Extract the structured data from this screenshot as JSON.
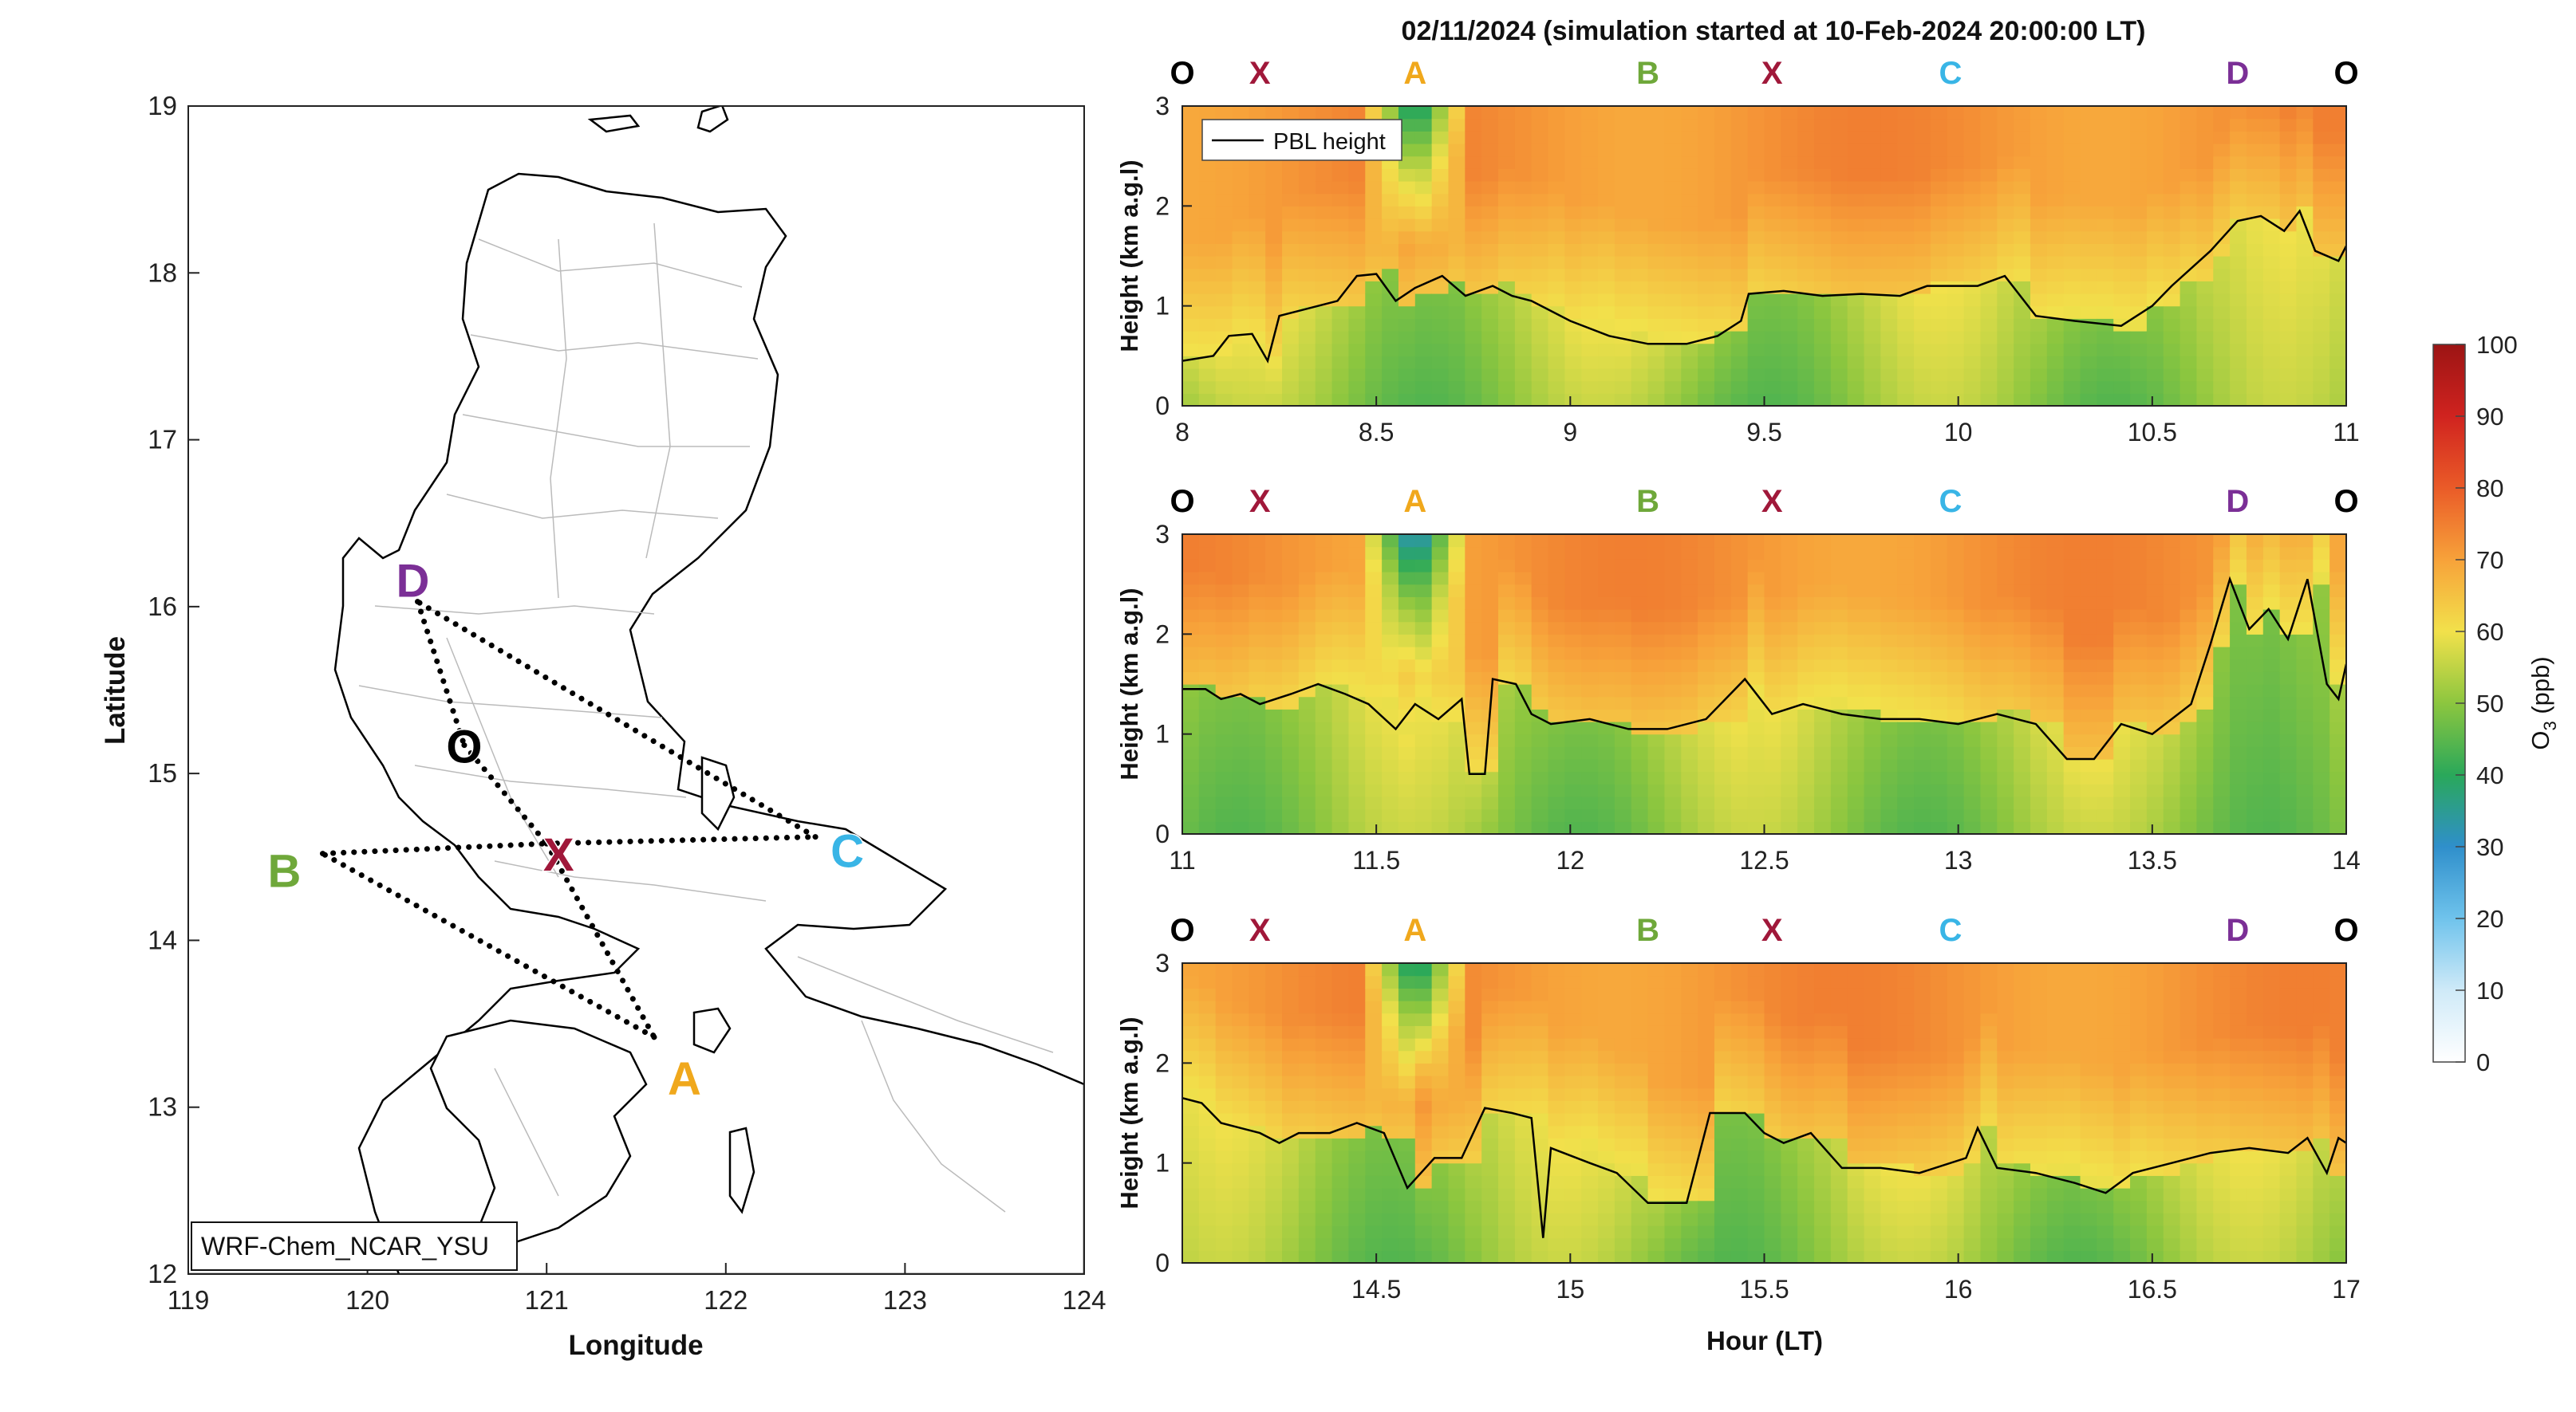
{
  "figure": {
    "title": "02/11/2024 (simulation started at 10-Feb-2024 20:00:00 LT)"
  },
  "chart_data": [
    {
      "type": "map",
      "xlabel": "Longitude",
      "ylabel": "Latitude",
      "xlim": [
        119,
        124
      ],
      "ylim": [
        12,
        19
      ],
      "xticks": [
        "119",
        "120",
        "121",
        "122",
        "123",
        "124"
      ],
      "yticks": [
        "12",
        "13",
        "14",
        "15",
        "16",
        "17",
        "18",
        "19"
      ],
      "model_label": "WRF-Chem_NCAR_YSU",
      "points": [
        {
          "name": "D",
          "lon": 120.28,
          "lat": 16.03,
          "color": "#7b2f96"
        },
        {
          "name": "O",
          "lon": 120.54,
          "lat": 15.17,
          "color": "#000000"
        },
        {
          "name": "X",
          "lon": 121.0,
          "lat": 14.58,
          "color": "#a0183a"
        },
        {
          "name": "C",
          "lon": 122.5,
          "lat": 14.62,
          "color": "#39b5e6"
        },
        {
          "name": "B",
          "lon": 119.75,
          "lat": 14.52,
          "color": "#6fa83a"
        },
        {
          "name": "A",
          "lon": 121.6,
          "lat": 13.42,
          "color": "#f0a81c"
        }
      ],
      "route": [
        "O",
        "X",
        "A",
        "B",
        "X",
        "C",
        "D",
        "O"
      ]
    },
    {
      "type": "heatmap",
      "ylabel": "Height (km a.g.l)",
      "xlim": [
        8,
        11
      ],
      "ylim": [
        0,
        3
      ],
      "xticks": [
        "8",
        "8.5",
        "9",
        "9.5",
        "10",
        "10.5",
        "11"
      ],
      "yticks": [
        "0",
        "1",
        "2",
        "3"
      ],
      "legend": "PBL height",
      "legend_position": "top-left",
      "route_labels": [
        {
          "name": "O",
          "hour": 8.0
        },
        {
          "name": "X",
          "hour": 8.2
        },
        {
          "name": "A",
          "hour": 8.6
        },
        {
          "name": "B",
          "hour": 9.2
        },
        {
          "name": "X",
          "hour": 9.52
        },
        {
          "name": "C",
          "hour": 9.98
        },
        {
          "name": "D",
          "hour": 10.72
        },
        {
          "name": "O",
          "hour": 11.0
        }
      ],
      "pbl_height_km": [
        [
          8.0,
          0.45
        ],
        [
          8.08,
          0.5
        ],
        [
          8.12,
          0.7
        ],
        [
          8.18,
          0.72
        ],
        [
          8.22,
          0.45
        ],
        [
          8.25,
          0.9
        ],
        [
          8.3,
          0.95
        ],
        [
          8.35,
          1.0
        ],
        [
          8.4,
          1.05
        ],
        [
          8.45,
          1.3
        ],
        [
          8.5,
          1.32
        ],
        [
          8.55,
          1.05
        ],
        [
          8.6,
          1.18
        ],
        [
          8.67,
          1.3
        ],
        [
          8.73,
          1.1
        ],
        [
          8.8,
          1.2
        ],
        [
          8.85,
          1.1
        ],
        [
          8.9,
          1.05
        ],
        [
          9.0,
          0.85
        ],
        [
          9.1,
          0.7
        ],
        [
          9.2,
          0.62
        ],
        [
          9.3,
          0.62
        ],
        [
          9.38,
          0.7
        ],
        [
          9.44,
          0.85
        ],
        [
          9.46,
          1.12
        ],
        [
          9.55,
          1.15
        ],
        [
          9.65,
          1.1
        ],
        [
          9.75,
          1.12
        ],
        [
          9.85,
          1.1
        ],
        [
          9.92,
          1.2
        ],
        [
          10.05,
          1.2
        ],
        [
          10.12,
          1.3
        ],
        [
          10.2,
          0.9
        ],
        [
          10.3,
          0.85
        ],
        [
          10.42,
          0.8
        ],
        [
          10.5,
          1.0
        ],
        [
          10.55,
          1.2
        ],
        [
          10.65,
          1.55
        ],
        [
          10.72,
          1.85
        ],
        [
          10.78,
          1.9
        ],
        [
          10.84,
          1.75
        ],
        [
          10.88,
          1.95
        ],
        [
          10.92,
          1.55
        ],
        [
          10.98,
          1.45
        ],
        [
          11.0,
          1.6
        ]
      ]
    },
    {
      "type": "heatmap",
      "ylabel": "Height (km a.g.l)",
      "xlim": [
        11,
        14
      ],
      "ylim": [
        0,
        3
      ],
      "xticks": [
        "11",
        "11.5",
        "12",
        "12.5",
        "13",
        "13.5",
        "14"
      ],
      "yticks": [
        "0",
        "1",
        "2",
        "3"
      ],
      "route_labels": [
        {
          "name": "O",
          "hour": 11.0
        },
        {
          "name": "X",
          "hour": 11.2
        },
        {
          "name": "A",
          "hour": 11.6
        },
        {
          "name": "B",
          "hour": 12.2
        },
        {
          "name": "X",
          "hour": 12.52
        },
        {
          "name": "C",
          "hour": 12.98
        },
        {
          "name": "D",
          "hour": 13.72
        },
        {
          "name": "O",
          "hour": 14.0
        }
      ],
      "pbl_height_km": [
        [
          11.0,
          1.45
        ],
        [
          11.06,
          1.45
        ],
        [
          11.1,
          1.35
        ],
        [
          11.15,
          1.4
        ],
        [
          11.2,
          1.3
        ],
        [
          11.28,
          1.4
        ],
        [
          11.35,
          1.5
        ],
        [
          11.42,
          1.4
        ],
        [
          11.48,
          1.3
        ],
        [
          11.55,
          1.05
        ],
        [
          11.6,
          1.3
        ],
        [
          11.66,
          1.15
        ],
        [
          11.72,
          1.35
        ],
        [
          11.74,
          0.6
        ],
        [
          11.78,
          0.6
        ],
        [
          11.8,
          1.55
        ],
        [
          11.86,
          1.5
        ],
        [
          11.9,
          1.2
        ],
        [
          11.95,
          1.1
        ],
        [
          12.05,
          1.15
        ],
        [
          12.15,
          1.05
        ],
        [
          12.25,
          1.05
        ],
        [
          12.35,
          1.15
        ],
        [
          12.45,
          1.55
        ],
        [
          12.52,
          1.2
        ],
        [
          12.6,
          1.3
        ],
        [
          12.7,
          1.2
        ],
        [
          12.8,
          1.15
        ],
        [
          12.9,
          1.15
        ],
        [
          13.0,
          1.1
        ],
        [
          13.1,
          1.2
        ],
        [
          13.2,
          1.1
        ],
        [
          13.28,
          0.75
        ],
        [
          13.35,
          0.75
        ],
        [
          13.42,
          1.1
        ],
        [
          13.5,
          1.0
        ],
        [
          13.55,
          1.15
        ],
        [
          13.6,
          1.3
        ],
        [
          13.65,
          1.9
        ],
        [
          13.7,
          2.55
        ],
        [
          13.75,
          2.05
        ],
        [
          13.8,
          2.25
        ],
        [
          13.85,
          1.95
        ],
        [
          13.9,
          2.55
        ],
        [
          13.95,
          1.5
        ],
        [
          13.98,
          1.35
        ],
        [
          14.0,
          1.7
        ]
      ]
    },
    {
      "type": "heatmap",
      "ylabel": "Height (km a.g.l)",
      "xlabel": "Hour (LT)",
      "xlim": [
        14,
        17
      ],
      "ylim": [
        0,
        3
      ],
      "xticks": [
        "14.5",
        "15",
        "15.5",
        "16",
        "16.5",
        "17"
      ],
      "yticks": [
        "0",
        "1",
        "2",
        "3"
      ],
      "route_labels": [
        {
          "name": "O",
          "hour": 14.0
        },
        {
          "name": "X",
          "hour": 14.2
        },
        {
          "name": "A",
          "hour": 14.6
        },
        {
          "name": "B",
          "hour": 15.2
        },
        {
          "name": "X",
          "hour": 15.52
        },
        {
          "name": "C",
          "hour": 15.98
        },
        {
          "name": "D",
          "hour": 16.72
        },
        {
          "name": "O",
          "hour": 17.0
        }
      ],
      "pbl_height_km": [
        [
          14.0,
          1.65
        ],
        [
          14.05,
          1.6
        ],
        [
          14.1,
          1.4
        ],
        [
          14.15,
          1.35
        ],
        [
          14.2,
          1.3
        ],
        [
          14.25,
          1.2
        ],
        [
          14.3,
          1.3
        ],
        [
          14.38,
          1.3
        ],
        [
          14.45,
          1.4
        ],
        [
          14.52,
          1.3
        ],
        [
          14.58,
          0.75
        ],
        [
          14.65,
          1.05
        ],
        [
          14.72,
          1.05
        ],
        [
          14.78,
          1.55
        ],
        [
          14.85,
          1.5
        ],
        [
          14.9,
          1.45
        ],
        [
          14.93,
          0.25
        ],
        [
          14.95,
          1.15
        ],
        [
          15.05,
          1.0
        ],
        [
          15.12,
          0.9
        ],
        [
          15.2,
          0.6
        ],
        [
          15.3,
          0.6
        ],
        [
          15.36,
          1.5
        ],
        [
          15.45,
          1.5
        ],
        [
          15.5,
          1.3
        ],
        [
          15.55,
          1.2
        ],
        [
          15.62,
          1.3
        ],
        [
          15.7,
          0.95
        ],
        [
          15.8,
          0.95
        ],
        [
          15.9,
          0.9
        ],
        [
          16.02,
          1.05
        ],
        [
          16.05,
          1.35
        ],
        [
          16.1,
          0.95
        ],
        [
          16.2,
          0.9
        ],
        [
          16.3,
          0.8
        ],
        [
          16.38,
          0.7
        ],
        [
          16.45,
          0.9
        ],
        [
          16.55,
          1.0
        ],
        [
          16.65,
          1.1
        ],
        [
          16.75,
          1.15
        ],
        [
          16.85,
          1.1
        ],
        [
          16.9,
          1.25
        ],
        [
          16.95,
          0.9
        ],
        [
          16.98,
          1.25
        ],
        [
          17.0,
          1.2
        ]
      ]
    }
  ],
  "colorbar": {
    "label": "O",
    "label_sub": "3",
    "label_unit": " (ppb)",
    "ticks": [
      "0",
      "10",
      "20",
      "30",
      "40",
      "50",
      "60",
      "70",
      "80",
      "90",
      "100"
    ],
    "range": [
      0,
      100
    ]
  }
}
